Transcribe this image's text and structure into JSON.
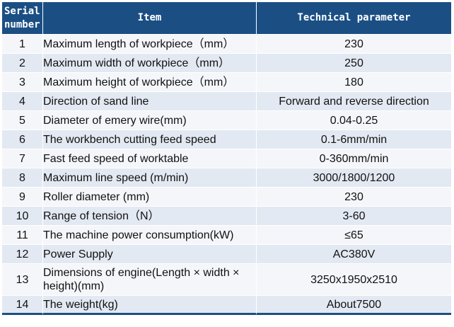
{
  "table": {
    "headers": {
      "serial": "Serial number",
      "item": "Item",
      "value": "Technical parameter"
    },
    "rows": [
      {
        "serial": "1",
        "item": "Maximum length of workpiece（mm）",
        "value": "230"
      },
      {
        "serial": "2",
        "item": "Maximum width of workpiece（mm）",
        "value": "250"
      },
      {
        "serial": "3",
        "item": "Maximum height of workpiece（mm）",
        "value": "180"
      },
      {
        "serial": "4",
        "item": "Direction of sand line",
        "value": "Forward and reverse direction"
      },
      {
        "serial": "5",
        "item": "Diameter of emery wire(mm)",
        "value": "0.04-0.25"
      },
      {
        "serial": "6",
        "item": "The workbench cutting feed speed",
        "value": "0.1-6mm/min"
      },
      {
        "serial": "7",
        "item": "Fast feed speed of worktable",
        "value": "0-360mm/min"
      },
      {
        "serial": "8",
        "item": "Maximum line speed (m/min)",
        "value": "3000/1800/1200"
      },
      {
        "serial": "9",
        "item": "Roller diameter (mm)",
        "value": "230"
      },
      {
        "serial": "10",
        "item": "Range of tension（N）",
        "value": "3-60"
      },
      {
        "serial": "11",
        "item": "The machine power consumption(kW)",
        "value": "≤65"
      },
      {
        "serial": "12",
        "item": "Power Supply",
        "value": "AC380V"
      },
      {
        "serial": "13",
        "item": "Dimensions of engine(Length × width × height)(mm)",
        "value": "3250x1950x2510"
      },
      {
        "serial": "14",
        "item": "The weight(kg)",
        "value": "About7500"
      }
    ]
  }
}
